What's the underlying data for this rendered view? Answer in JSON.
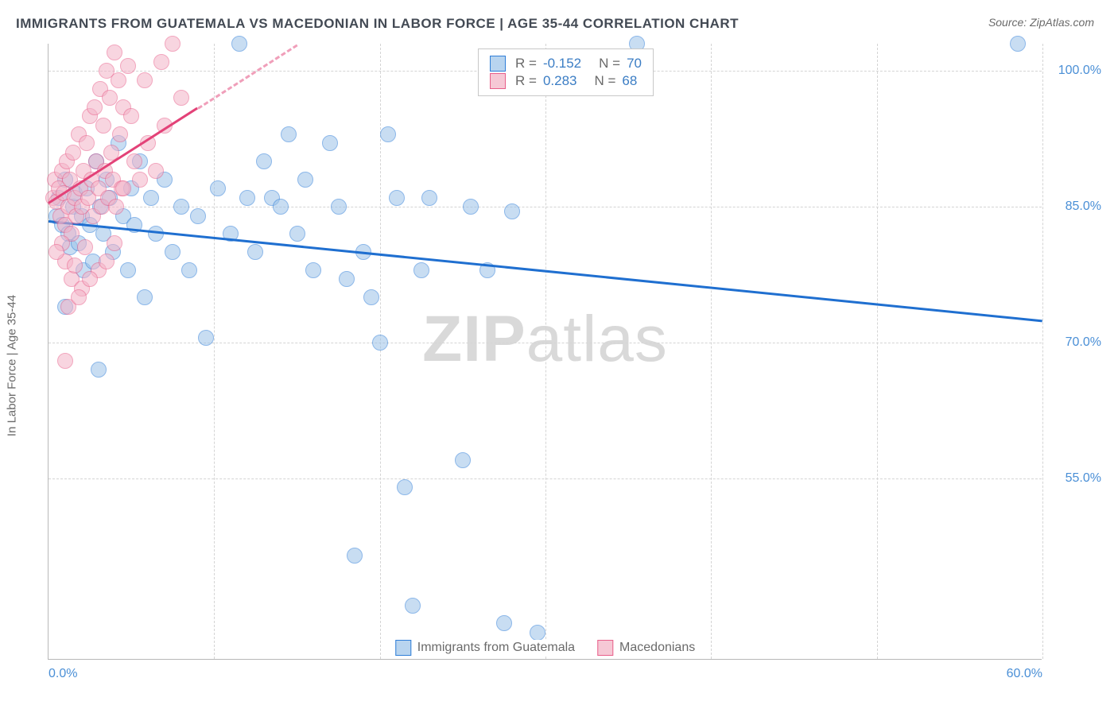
{
  "header": {
    "title": "IMMIGRANTS FROM GUATEMALA VS MACEDONIAN IN LABOR FORCE | AGE 35-44 CORRELATION CHART",
    "source": "Source: ZipAtlas.com"
  },
  "chart": {
    "type": "scatter",
    "ylabel": "In Labor Force | Age 35-44",
    "xlim": [
      0,
      60
    ],
    "ylim": [
      35,
      103
    ],
    "xtick_labels": {
      "0": "0.0%",
      "60": "60.0%"
    },
    "ytick_positions": [
      55,
      70,
      85,
      100
    ],
    "ytick_labels": {
      "55": "55.0%",
      "70": "70.0%",
      "85": "85.0%",
      "100": "100.0%"
    },
    "vgrid_positions": [
      0,
      10,
      20,
      30,
      40,
      50,
      60
    ],
    "background_color": "#ffffff",
    "grid_color": "#d4d4d4",
    "axis_color": "#b8b8b8",
    "tick_font_color": "#4a8fd6",
    "label_font_color": "#6a6a6a",
    "marker_radius": 10,
    "marker_opacity": 0.55,
    "watermark": {
      "bold": "ZIP",
      "rest": "atlas",
      "color": "#d9d9d9",
      "fontsize": 82
    },
    "series": [
      {
        "name": "Immigrants from Guatemala",
        "swatch_fill": "#b8d4ef",
        "swatch_border": "#2f7ed8",
        "marker_fill": "#9cc3e8",
        "marker_border": "#2f7ed8",
        "trend": {
          "x1": 0,
          "y1": 83.5,
          "x2": 60,
          "y2": 72.5,
          "color": "#1f6fd0",
          "width": 3,
          "dashed_after_x": null
        },
        "stats": {
          "R": "-0.152",
          "N": "70"
        },
        "points": [
          [
            0.5,
            84
          ],
          [
            0.6,
            86
          ],
          [
            0.8,
            83
          ],
          [
            1.0,
            88
          ],
          [
            1.2,
            82
          ],
          [
            1.3,
            80.5
          ],
          [
            1.5,
            85
          ],
          [
            1.6,
            86.5
          ],
          [
            1.8,
            81
          ],
          [
            2.0,
            84
          ],
          [
            2.1,
            78
          ],
          [
            2.3,
            87
          ],
          [
            2.5,
            83
          ],
          [
            2.7,
            79
          ],
          [
            2.9,
            90
          ],
          [
            3.1,
            85
          ],
          [
            3.3,
            82
          ],
          [
            3.5,
            88
          ],
          [
            3.7,
            86
          ],
          [
            3.9,
            80
          ],
          [
            4.2,
            92
          ],
          [
            4.5,
            84
          ],
          [
            4.8,
            78
          ],
          [
            5.0,
            87
          ],
          [
            5.2,
            83
          ],
          [
            5.5,
            90
          ],
          [
            5.8,
            75
          ],
          [
            6.2,
            86
          ],
          [
            6.5,
            82
          ],
          [
            7.0,
            88
          ],
          [
            7.5,
            80
          ],
          [
            8.0,
            85
          ],
          [
            8.5,
            78
          ],
          [
            9.0,
            84
          ],
          [
            9.5,
            70.5
          ],
          [
            10.2,
            87
          ],
          [
            11.0,
            82
          ],
          [
            11.5,
            103
          ],
          [
            12.0,
            86
          ],
          [
            12.5,
            80
          ],
          [
            13.0,
            90
          ],
          [
            13.5,
            86
          ],
          [
            14.0,
            85
          ],
          [
            14.5,
            93
          ],
          [
            15.0,
            82
          ],
          [
            15.5,
            88
          ],
          [
            16.0,
            78
          ],
          [
            17.0,
            92
          ],
          [
            17.5,
            85
          ],
          [
            18.0,
            77
          ],
          [
            18.5,
            46.5
          ],
          [
            19.0,
            80
          ],
          [
            19.5,
            75
          ],
          [
            20.0,
            70
          ],
          [
            20.5,
            93
          ],
          [
            21.0,
            86
          ],
          [
            21.5,
            54
          ],
          [
            22.0,
            41
          ],
          [
            22.5,
            78
          ],
          [
            23.0,
            86
          ],
          [
            25.0,
            57
          ],
          [
            25.5,
            85
          ],
          [
            26.5,
            78
          ],
          [
            27.5,
            39
          ],
          [
            28.0,
            84.5
          ],
          [
            29.5,
            38
          ],
          [
            35.5,
            103
          ],
          [
            58.5,
            103
          ],
          [
            3.0,
            67
          ],
          [
            1.0,
            74
          ]
        ]
      },
      {
        "name": "Macedonians",
        "swatch_fill": "#f6c8d5",
        "swatch_border": "#e85f8a",
        "marker_fill": "#f3b3c8",
        "marker_border": "#e85f8a",
        "trend": {
          "x1": 0,
          "y1": 85.5,
          "x2": 15,
          "y2": 103,
          "color": "#e34278",
          "width": 3,
          "dashed_after_x": 9
        },
        "stats": {
          "R": "0.283",
          "N": "68"
        },
        "points": [
          [
            0.3,
            86
          ],
          [
            0.4,
            88
          ],
          [
            0.5,
            85.5
          ],
          [
            0.6,
            87
          ],
          [
            0.7,
            84
          ],
          [
            0.8,
            89
          ],
          [
            0.9,
            86.5
          ],
          [
            1.0,
            83
          ],
          [
            1.1,
            90
          ],
          [
            1.2,
            85
          ],
          [
            1.3,
            88
          ],
          [
            1.4,
            82
          ],
          [
            1.5,
            91
          ],
          [
            1.6,
            86
          ],
          [
            1.7,
            84
          ],
          [
            1.8,
            93
          ],
          [
            1.9,
            87
          ],
          [
            2.0,
            85
          ],
          [
            2.1,
            89
          ],
          [
            2.2,
            80.5
          ],
          [
            2.3,
            92
          ],
          [
            2.4,
            86
          ],
          [
            2.5,
            95
          ],
          [
            2.6,
            88
          ],
          [
            2.7,
            84
          ],
          [
            2.8,
            96
          ],
          [
            2.9,
            90
          ],
          [
            3.0,
            87
          ],
          [
            3.1,
            98
          ],
          [
            3.2,
            85
          ],
          [
            3.3,
            94
          ],
          [
            3.4,
            89
          ],
          [
            3.5,
            100
          ],
          [
            3.6,
            86
          ],
          [
            3.7,
            97
          ],
          [
            3.8,
            91
          ],
          [
            3.9,
            88
          ],
          [
            4.0,
            102
          ],
          [
            4.1,
            85
          ],
          [
            4.2,
            99
          ],
          [
            4.3,
            93
          ],
          [
            4.4,
            87
          ],
          [
            4.5,
            96
          ],
          [
            1.0,
            79
          ],
          [
            1.4,
            77
          ],
          [
            0.8,
            81
          ],
          [
            1.6,
            78.5
          ],
          [
            2.0,
            76
          ],
          [
            1.2,
            74
          ],
          [
            0.5,
            80
          ],
          [
            3.0,
            78
          ],
          [
            1.8,
            75
          ],
          [
            3.5,
            79
          ],
          [
            2.5,
            77
          ],
          [
            4.0,
            81
          ],
          [
            1.0,
            68
          ],
          [
            4.5,
            87
          ],
          [
            5.0,
            95
          ],
          [
            5.2,
            90
          ],
          [
            5.5,
            88
          ],
          [
            6.0,
            92
          ],
          [
            6.5,
            89
          ],
          [
            7.0,
            94
          ],
          [
            7.5,
            103
          ],
          [
            8.0,
            97
          ],
          [
            4.8,
            100.5
          ],
          [
            5.8,
            99
          ],
          [
            6.8,
            101
          ]
        ]
      }
    ],
    "legend_top": {
      "border_color": "#c8c8c8",
      "label_color": "#6a6a6a",
      "value_color": "#3b7dc4"
    }
  }
}
